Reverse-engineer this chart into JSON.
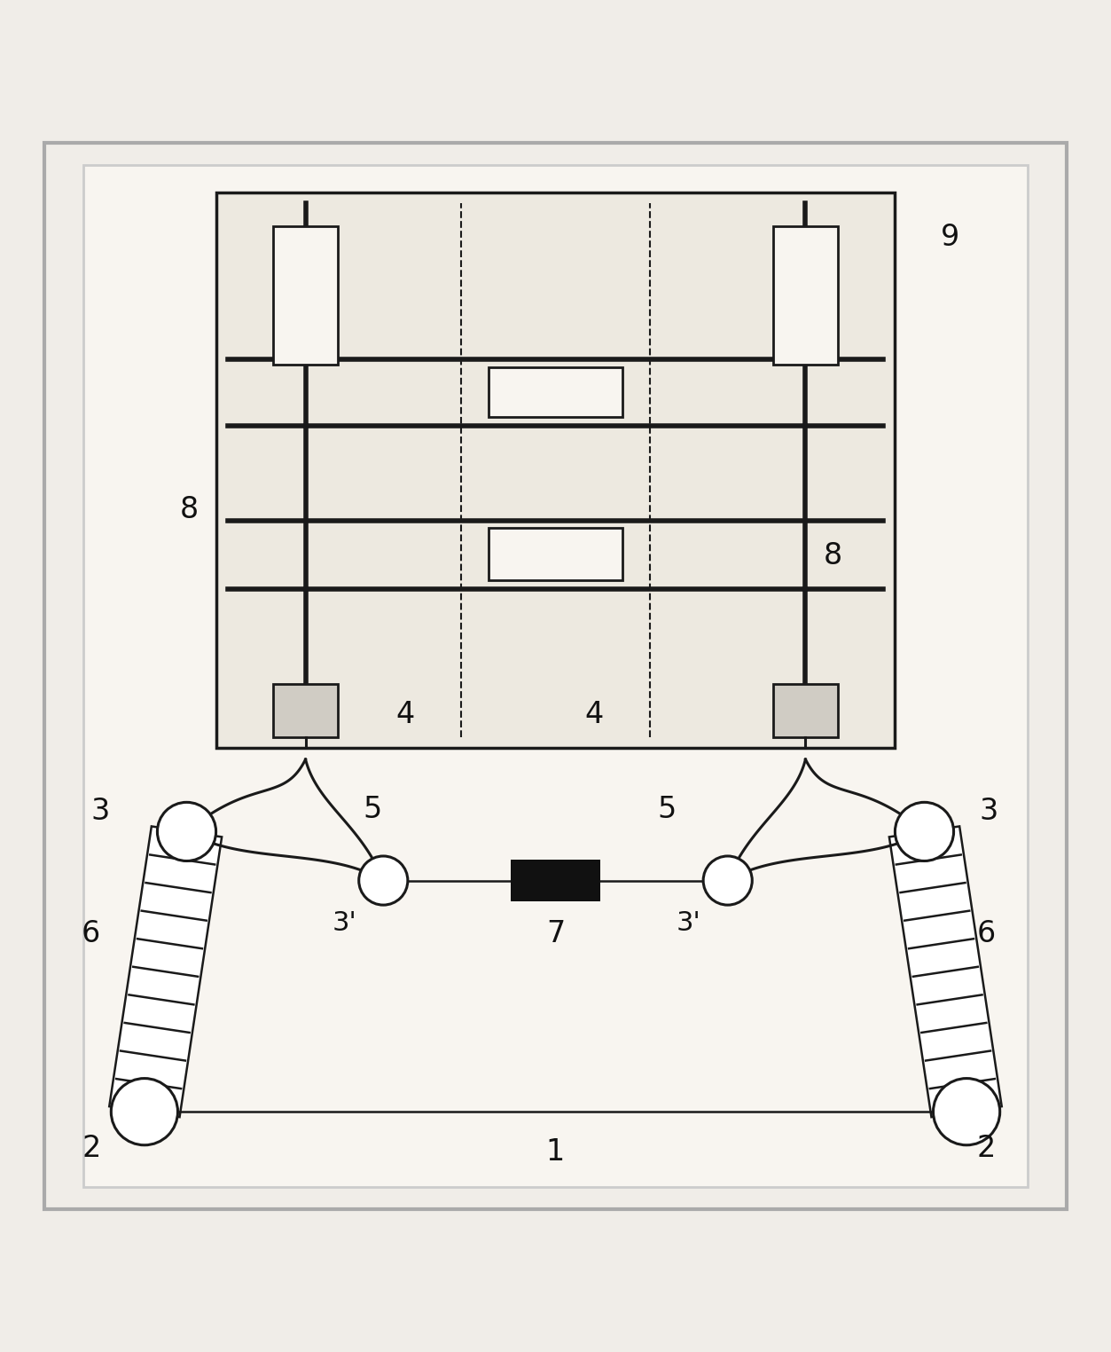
{
  "bg_color": "#f0ede8",
  "line_color": "#1a1a1a",
  "chip_bg": "#ede9e0",
  "inner_bg": "#f8f5f0",
  "pad_bg": "#d0ccc4",
  "resistor_color": "#111111"
}
